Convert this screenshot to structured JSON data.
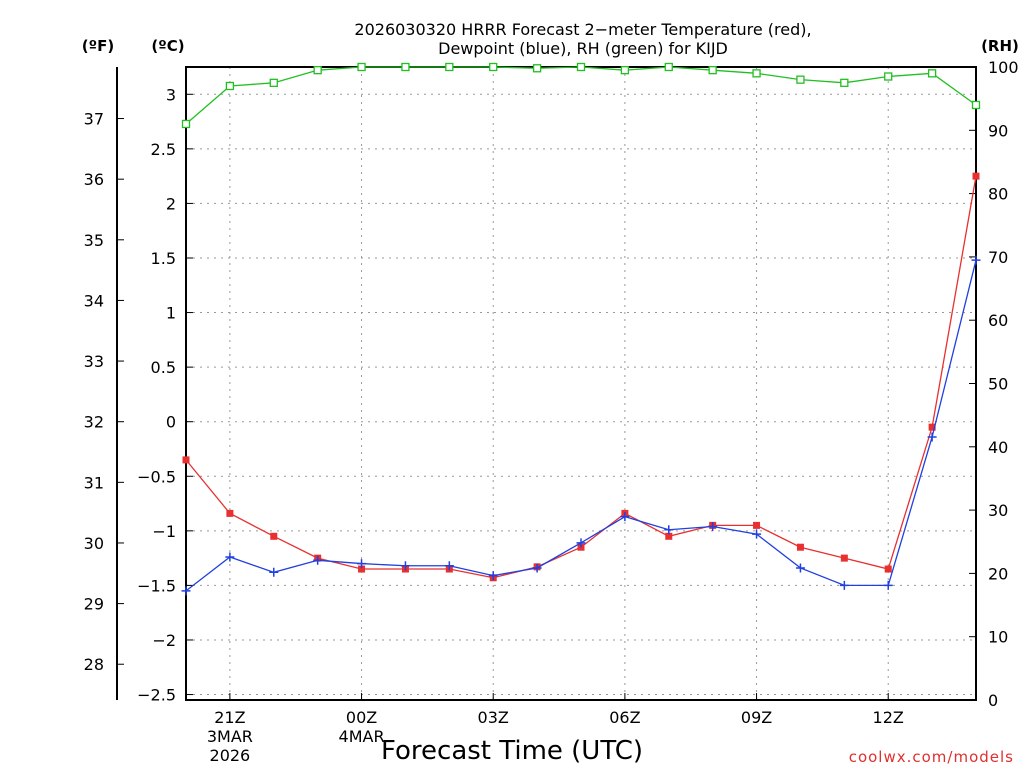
{
  "chart_data": {
    "type": "line",
    "title_line1": "2026030320 HRRR Forecast 2−meter Temperature (red),",
    "title_line2": "Dewpoint (blue), RH (green) for KIJD",
    "unit_f": "(ºF)",
    "unit_c": "(ºC)",
    "unit_rh": "(RH)",
    "xlabel": "Forecast Time (UTC)",
    "credit": "coolwx.com/models",
    "x_hours": [
      20,
      21,
      22,
      23,
      24,
      25,
      26,
      27,
      28,
      29,
      30,
      31,
      32,
      33,
      34,
      35,
      36,
      37,
      38
    ],
    "x_ticks": [
      {
        "hour": 21,
        "label": "21Z",
        "sub1": "3MAR",
        "sub2": "2026"
      },
      {
        "hour": 24,
        "label": "00Z",
        "sub1": "4MAR",
        "sub2": ""
      },
      {
        "hour": 27,
        "label": "03Z",
        "sub1": "",
        "sub2": ""
      },
      {
        "hour": 30,
        "label": "06Z",
        "sub1": "",
        "sub2": ""
      },
      {
        "hour": 33,
        "label": "09Z",
        "sub1": "",
        "sub2": ""
      },
      {
        "hour": 36,
        "label": "12Z",
        "sub1": "",
        "sub2": ""
      }
    ],
    "xlim": [
      20,
      38
    ],
    "celsius_axis": {
      "ylim": [
        -2.55,
        3.25
      ],
      "ticks": [
        -2.5,
        -2,
        -1.5,
        -1,
        -0.5,
        0,
        0.5,
        1,
        1.5,
        2,
        2.5,
        3
      ],
      "labels": [
        "−2.5",
        "−2",
        "−1.5",
        "−1",
        "−0.5",
        "0",
        "0.5",
        "1",
        "1.5",
        "2",
        "2.5",
        "3"
      ]
    },
    "fahrenheit_axis": {
      "ticks": [
        28,
        29,
        30,
        31,
        32,
        33,
        34,
        35,
        36,
        37
      ],
      "labels": [
        "28",
        "29",
        "30",
        "31",
        "32",
        "33",
        "34",
        "35",
        "36",
        "37"
      ]
    },
    "rh_axis": {
      "ylim": [
        0,
        100
      ],
      "ticks": [
        0,
        10,
        20,
        30,
        40,
        50,
        60,
        70,
        80,
        90,
        100
      ],
      "labels": [
        "0",
        "10",
        "20",
        "30",
        "40",
        "50",
        "60",
        "70",
        "80",
        "90",
        "100"
      ]
    },
    "series": [
      {
        "name": "Temperature",
        "color": "#e83030",
        "marker": "filled-square",
        "axis": "celsius",
        "values": [
          -0.35,
          -0.84,
          -1.05,
          -1.25,
          -1.35,
          -1.35,
          -1.35,
          -1.43,
          -1.33,
          -1.15,
          -0.84,
          -1.05,
          -0.95,
          -0.95,
          -1.15,
          -1.25,
          -1.35,
          -0.05,
          2.25
        ]
      },
      {
        "name": "Dewpoint",
        "color": "#2040e0",
        "marker": "plus",
        "axis": "celsius",
        "values": [
          -1.55,
          -1.24,
          -1.38,
          -1.27,
          -1.3,
          -1.32,
          -1.32,
          -1.41,
          -1.34,
          -1.11,
          -0.87,
          -0.99,
          -0.96,
          -1.03,
          -1.34,
          -1.5,
          -1.5,
          -0.14,
          1.48
        ]
      },
      {
        "name": "RH",
        "color": "#20c020",
        "marker": "open-square",
        "axis": "rh",
        "values": [
          91,
          97,
          97.5,
          99.5,
          100,
          100,
          100,
          100,
          99.8,
          100,
          99.5,
          100,
          99.5,
          99,
          98,
          97.5,
          98.5,
          99,
          94
        ]
      }
    ]
  }
}
